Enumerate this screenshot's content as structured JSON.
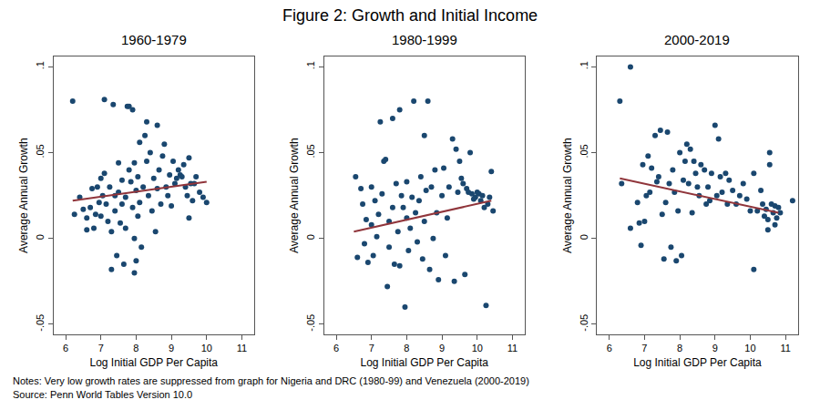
{
  "title": "Figure 2: Growth and Initial Income",
  "notes": [
    "Notes: Very low growth rates are suppressed from graph for Nigeria and DRC (1980-99) and Venezuela (2000-2019)",
    "Source: Penn World Tables Version 10.0"
  ],
  "chart_data": [
    {
      "type": "scatter",
      "title": "1960-1979",
      "x_label": "Log Initial GDP Per Capita",
      "y_label": "Average Annual Growth",
      "xlim": [
        5.65,
        11.35
      ],
      "xticks": [
        6,
        7,
        8,
        9,
        10,
        11
      ],
      "ylim": [
        -0.056,
        0.106
      ],
      "yticks": [
        {
          "value": -0.05,
          "label": "-.05"
        },
        0,
        {
          "value": 0.05,
          "label": ".05"
        },
        {
          "value": 0.1,
          "label": ".1"
        }
      ],
      "grid": false,
      "series": [
        {
          "type": "scatter",
          "color": "#1a476f",
          "marker": "circle",
          "x": [
            6.2,
            6.25,
            6.4,
            6.5,
            6.6,
            6.6,
            6.7,
            6.75,
            6.8,
            6.85,
            6.9,
            6.95,
            7.0,
            7.0,
            7.05,
            7.1,
            7.1,
            7.15,
            7.2,
            7.25,
            7.3,
            7.3,
            7.35,
            7.4,
            7.4,
            7.45,
            7.5,
            7.5,
            7.55,
            7.6,
            7.6,
            7.65,
            7.7,
            7.7,
            7.75,
            7.8,
            7.8,
            7.85,
            7.9,
            7.9,
            7.95,
            7.95,
            7.95,
            8.0,
            8.0,
            8.05,
            8.05,
            8.1,
            8.1,
            8.15,
            8.2,
            8.25,
            8.3,
            8.3,
            8.35,
            8.4,
            8.45,
            8.5,
            8.55,
            8.6,
            8.6,
            8.65,
            8.7,
            8.75,
            8.8,
            8.85,
            8.9,
            8.95,
            9.0,
            9.05,
            9.1,
            9.15,
            9.2,
            9.25,
            9.3,
            9.35,
            9.4,
            9.45,
            9.5,
            9.5,
            9.55,
            9.6,
            9.65,
            9.7,
            9.8,
            9.9,
            10.0
          ],
          "values": [
            0.08,
            0.014,
            0.024,
            0.017,
            0.005,
            0.012,
            0.018,
            0.029,
            0.006,
            0.014,
            0.03,
            0.021,
            0.035,
            0.013,
            0.025,
            0.081,
            0.038,
            0.02,
            0.01,
            0.03,
            -0.018,
            0.004,
            0.078,
            0.025,
            0.016,
            -0.01,
            0.027,
            0.044,
            0.009,
            0.034,
            0.02,
            -0.015,
            0.024,
            0.006,
            0.077,
            0.077,
            0.04,
            0.033,
            0.018,
            0.075,
            0.0,
            0.044,
            -0.02,
            -0.013,
            0.028,
            0.013,
            0.036,
            0.021,
            0.056,
            -0.005,
            0.03,
            0.06,
            0.068,
            0.045,
            0.025,
            0.05,
            0.016,
            0.035,
            0.004,
            0.066,
            0.029,
            0.04,
            0.02,
            0.048,
            0.055,
            0.03,
            0.025,
            0.037,
            0.019,
            0.045,
            0.032,
            0.035,
            0.04,
            0.037,
            0.036,
            0.043,
            0.03,
            0.025,
            0.047,
            0.012,
            0.032,
            0.022,
            0.032,
            0.036,
            0.027,
            0.024,
            0.021
          ]
        },
        {
          "type": "line",
          "color": "#90353b",
          "line_style": "solid",
          "x": [
            6.2,
            10.0
          ],
          "values": [
            0.022,
            0.033
          ]
        }
      ]
    },
    {
      "type": "scatter",
      "title": "1980-1999",
      "x_label": "Log Initial GDP Per Capita",
      "y_label": "Average Annual Growth",
      "xlim": [
        5.65,
        11.35
      ],
      "xticks": [
        6,
        7,
        8,
        9,
        10,
        11
      ],
      "ylim": [
        -0.056,
        0.106
      ],
      "yticks": [
        {
          "value": -0.05,
          "label": "-.05"
        },
        0,
        {
          "value": 0.05,
          "label": ".05"
        },
        {
          "value": 0.1,
          "label": ".1"
        }
      ],
      "grid": false,
      "series": [
        {
          "type": "scatter",
          "color": "#1a476f",
          "marker": "circle",
          "x": [
            6.55,
            6.6,
            6.7,
            6.75,
            6.8,
            6.85,
            6.9,
            7.0,
            7.0,
            7.05,
            7.1,
            7.15,
            7.2,
            7.25,
            7.3,
            7.35,
            7.4,
            7.45,
            7.5,
            7.5,
            7.6,
            7.6,
            7.65,
            7.7,
            7.75,
            7.8,
            7.8,
            7.85,
            7.9,
            7.95,
            8.0,
            8.0,
            8.05,
            8.1,
            8.15,
            8.2,
            8.25,
            8.3,
            8.35,
            8.4,
            8.45,
            8.5,
            8.5,
            8.55,
            8.6,
            8.65,
            8.7,
            8.75,
            8.8,
            8.85,
            8.9,
            9.0,
            9.05,
            9.1,
            9.15,
            9.2,
            9.3,
            9.35,
            9.4,
            9.45,
            9.5,
            9.55,
            9.6,
            9.65,
            9.7,
            9.75,
            9.8,
            9.85,
            9.9,
            9.95,
            10.0,
            10.05,
            10.1,
            10.15,
            10.2,
            10.25,
            10.3,
            10.35,
            10.4,
            10.45
          ],
          "values": [
            0.036,
            -0.011,
            0.029,
            0.02,
            -0.003,
            0.011,
            -0.014,
            0.008,
            0.03,
            -0.01,
            0.022,
            0.001,
            0.014,
            0.068,
            0.026,
            0.045,
            0.046,
            -0.028,
            0.01,
            -0.005,
            0.018,
            0.07,
            -0.015,
            0.032,
            0.004,
            0.075,
            -0.016,
            0.025,
            0.018,
            -0.04,
            0.012,
            0.033,
            -0.007,
            0.006,
            0.024,
            0.08,
            0.015,
            -0.002,
            0.022,
            0.036,
            -0.012,
            0.06,
            0.01,
            0.028,
            0.08,
            -0.018,
            0.03,
            0.0,
            0.04,
            0.015,
            -0.024,
            0.025,
            0.041,
            -0.01,
            0.012,
            0.03,
            0.058,
            -0.025,
            0.052,
            0.027,
            0.045,
            0.035,
            0.032,
            -0.021,
            0.029,
            0.027,
            0.05,
            0.026,
            0.023,
            0.024,
            0.027,
            0.026,
            0.022,
            0.025,
            0.018,
            -0.039,
            0.02,
            0.024,
            0.039,
            0.016
          ]
        },
        {
          "type": "line",
          "color": "#90353b",
          "line_style": "solid",
          "x": [
            6.5,
            10.4
          ],
          "values": [
            0.004,
            0.022
          ]
        }
      ]
    },
    {
      "type": "scatter",
      "title": "2000-2019",
      "x_label": "Log Initial GDP Per Capita",
      "y_label": "Average Annual Growth",
      "xlim": [
        5.65,
        11.35
      ],
      "xticks": [
        6,
        7,
        8,
        9,
        10,
        11
      ],
      "ylim": [
        -0.056,
        0.106
      ],
      "yticks": [
        {
          "value": -0.05,
          "label": "-.05"
        },
        0,
        {
          "value": 0.05,
          "label": ".05"
        },
        {
          "value": 0.1,
          "label": ".1"
        }
      ],
      "grid": false,
      "series": [
        {
          "type": "scatter",
          "color": "#1a476f",
          "marker": "circle",
          "x": [
            6.3,
            6.35,
            6.6,
            6.6,
            6.8,
            6.85,
            6.9,
            6.95,
            7.0,
            7.05,
            7.1,
            7.15,
            7.2,
            7.3,
            7.35,
            7.4,
            7.45,
            7.5,
            7.55,
            7.6,
            7.65,
            7.7,
            7.75,
            7.8,
            7.85,
            7.9,
            7.95,
            8.0,
            8.05,
            8.1,
            8.15,
            8.2,
            8.25,
            8.3,
            8.35,
            8.4,
            8.45,
            8.5,
            8.55,
            8.6,
            8.7,
            8.75,
            8.8,
            8.85,
            8.9,
            9.0,
            9.05,
            9.1,
            9.15,
            9.2,
            9.3,
            9.35,
            9.4,
            9.5,
            9.6,
            9.7,
            9.8,
            9.9,
            10.0,
            10.1,
            10.1,
            10.2,
            10.3,
            10.35,
            10.4,
            10.45,
            10.5,
            10.5,
            10.55,
            10.55,
            10.6,
            10.65,
            10.7,
            10.7,
            10.75,
            10.8,
            10.85,
            11.2
          ],
          "values": [
            0.08,
            0.032,
            0.1,
            0.006,
            0.021,
            0.009,
            -0.004,
            0.043,
            0.01,
            0.025,
            0.048,
            0.027,
            0.041,
            0.06,
            0.033,
            0.036,
            0.063,
            0.014,
            -0.012,
            0.021,
            0.062,
            0.032,
            -0.005,
            0.04,
            0.027,
            -0.013,
            0.016,
            0.05,
            -0.01,
            0.034,
            0.045,
            0.055,
            0.032,
            0.052,
            0.015,
            0.045,
            0.038,
            0.03,
            0.025,
            0.043,
            0.04,
            0.02,
            0.03,
            0.022,
            0.038,
            0.066,
            0.025,
            0.058,
            0.036,
            0.027,
            0.038,
            0.02,
            0.034,
            0.028,
            0.02,
            0.025,
            0.032,
            0.023,
            0.016,
            -0.018,
            0.038,
            0.016,
            0.028,
            0.02,
            0.013,
            0.017,
            0.011,
            0.005,
            0.05,
            0.043,
            0.02,
            0.015,
            0.019,
            0.008,
            0.012,
            0.018,
            0.015,
            0.022
          ]
        },
        {
          "type": "line",
          "color": "#90353b",
          "line_style": "solid",
          "x": [
            6.3,
            10.8
          ],
          "values": [
            0.035,
            0.015
          ]
        }
      ]
    }
  ]
}
